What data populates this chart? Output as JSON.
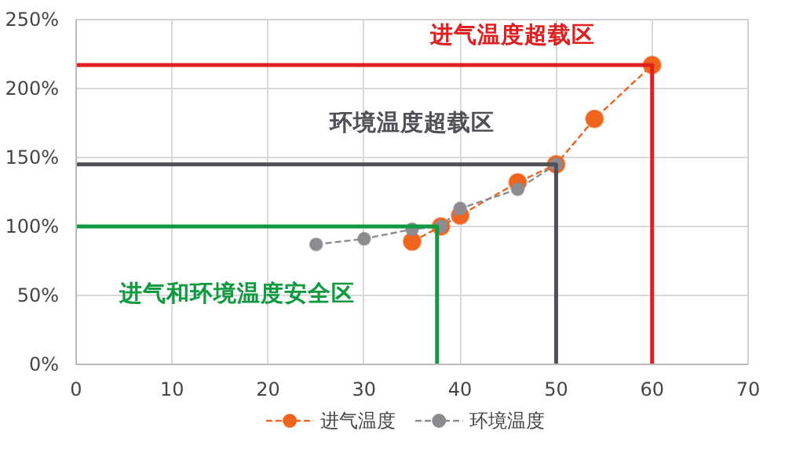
{
  "chart_data": {
    "type": "line",
    "xlim": [
      0,
      70
    ],
    "xticks": [
      0,
      10,
      20,
      30,
      40,
      50,
      60,
      70
    ],
    "ylim": [
      0,
      250
    ],
    "yticks": [
      {
        "value": 0,
        "label": "0%"
      },
      {
        "value": 50,
        "label": "50%"
      },
      {
        "value": 100,
        "label": "100%"
      },
      {
        "value": 150,
        "label": "150%"
      },
      {
        "value": 200,
        "label": "200%"
      },
      {
        "value": 250,
        "label": "250%"
      }
    ],
    "grid": true,
    "legend": "bottom",
    "line_style": "dashed",
    "series": [
      {
        "name": "进气温度",
        "color": "#f0641e",
        "marker": "circle",
        "x": [
          35,
          38,
          40,
          46,
          50,
          54,
          60
        ],
        "values": [
          89,
          100,
          108,
          132,
          145,
          178,
          217
        ]
      },
      {
        "name": "环境温度",
        "color": "#8c8c90",
        "marker": "circle",
        "x": [
          25,
          30,
          35,
          38,
          40,
          46,
          50
        ],
        "values": [
          87,
          91,
          98,
          100,
          113,
          127,
          145
        ]
      },
      {
        "color": "#e02020",
        "marker": "none",
        "line_style": "solid",
        "x": [
          0,
          60,
          60
        ],
        "values": [
          217,
          217,
          0
        ]
      },
      {
        "color": "#505058",
        "marker": "none",
        "line_style": "solid",
        "x": [
          0,
          50,
          50
        ],
        "values": [
          145,
          145,
          0
        ]
      },
      {
        "color": "#109a40",
        "marker": "none",
        "line_style": "solid",
        "x": [
          0,
          37.6,
          37.6
        ],
        "values": [
          100,
          100,
          0
        ]
      }
    ],
    "annotations": [
      "进气温度超载区",
      "环境温度超载区",
      "进气和环境温度安全区"
    ]
  }
}
